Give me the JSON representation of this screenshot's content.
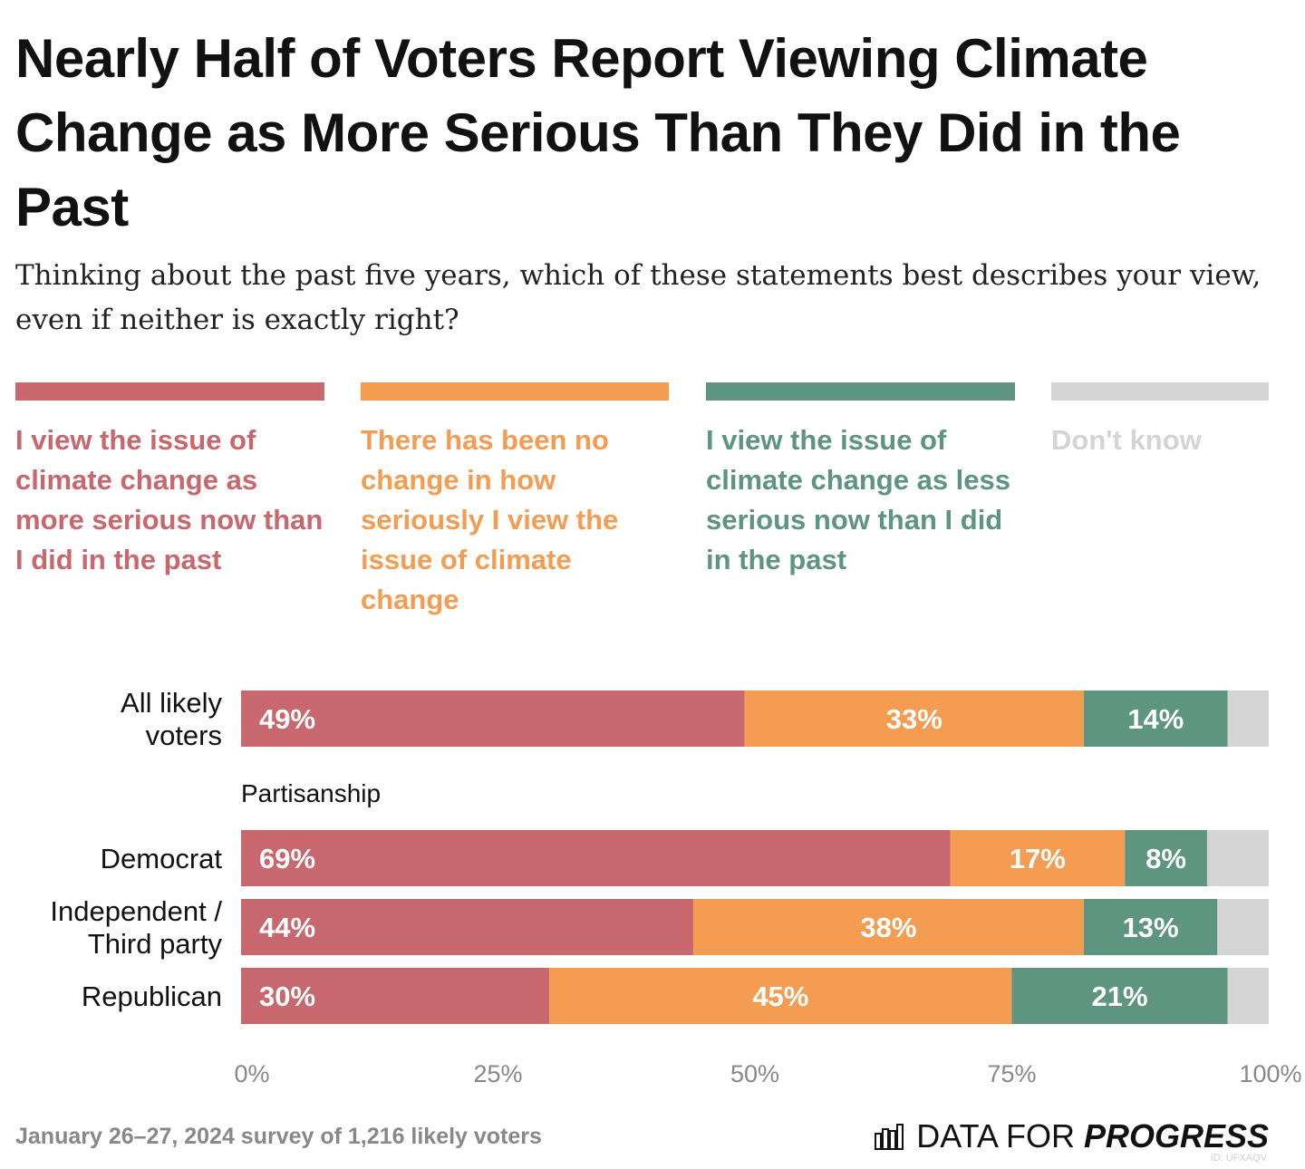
{
  "title": "Nearly Half of Voters Report Viewing Climate Change as More Serious Than They Did in the Past",
  "subtitle": "Thinking about the past five years, which of these statements best describes your view, even if neither is exactly right?",
  "colors": {
    "more": "#c8686e",
    "nochange": "#f49d52",
    "less": "#5e9580",
    "dontknow": "#d4d4d4"
  },
  "legend": [
    {
      "label": "I view the issue of climate change as more serious now than I did in the past",
      "color": "#c8686e"
    },
    {
      "label": "There has been no change in how seriously I view the issue of climate change",
      "color": "#f49d52"
    },
    {
      "label": "I view the issue of climate change as less serious now than I did in the past",
      "color": "#5e9580"
    },
    {
      "label": "Don't know",
      "color": "#d4d4d4"
    }
  ],
  "chart_data": {
    "type": "bar",
    "orientation": "horizontal",
    "stacked": true,
    "categories": [
      "All likely voters",
      "Democrat",
      "Independent / Third party",
      "Republican"
    ],
    "group_label": "Partisanship",
    "series": [
      {
        "name": "I view the issue of climate change as more serious now than I did in the past",
        "values": [
          49,
          69,
          44,
          30
        ]
      },
      {
        "name": "There has been no change in how seriously I view the issue of climate change",
        "values": [
          33,
          17,
          38,
          45
        ]
      },
      {
        "name": "I view the issue of climate change as less serious now than I did in the past",
        "values": [
          14,
          8,
          13,
          21
        ]
      },
      {
        "name": "Don't know",
        "values": [
          4,
          5,
          5,
          4
        ]
      }
    ],
    "value_labels": [
      [
        "49%",
        "33%",
        "14%",
        ""
      ],
      [
        "69%",
        "17%",
        "8%",
        ""
      ],
      [
        "44%",
        "38%",
        "13%",
        ""
      ],
      [
        "30%",
        "45%",
        "21%",
        ""
      ]
    ],
    "xlim": [
      0,
      100
    ],
    "xticks": [
      "0%",
      "25%",
      "50%",
      "75%",
      "100%"
    ]
  },
  "footnote": "January 26–27, 2024 survey of 1,216 likely voters",
  "brand": {
    "part1": "DATA FOR",
    "part2": "PROGRESS",
    "id": "ID: UFXAQV"
  }
}
